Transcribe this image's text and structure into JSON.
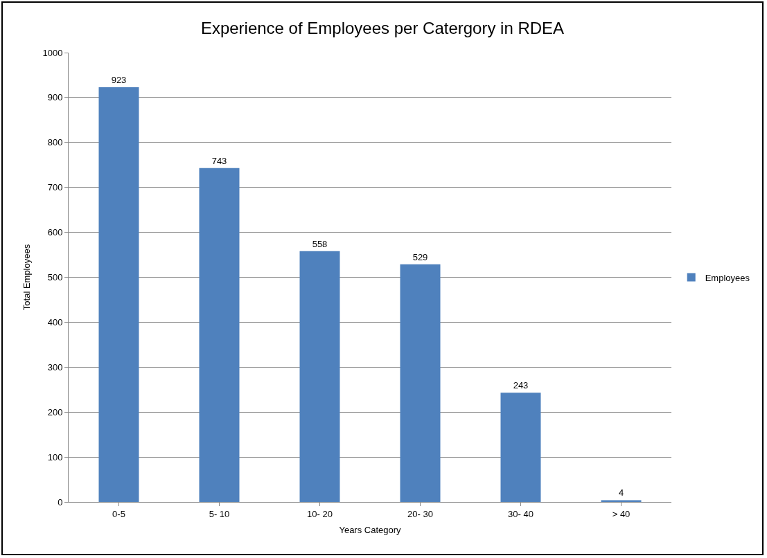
{
  "chart_data": {
    "type": "bar",
    "title": "Experience of Employees per Catergory in RDEA",
    "xlabel": "Years Category",
    "ylabel": "Total Employees",
    "categories": [
      "0-5",
      "5- 10",
      "10- 20",
      "20- 30",
      "30- 40",
      "> 40"
    ],
    "series": [
      {
        "name": "Employees",
        "color": "#4f81bd",
        "values": [
          923,
          743,
          558,
          529,
          243,
          4
        ]
      }
    ],
    "ylim": [
      0,
      1000
    ],
    "yticks": [
      0,
      100,
      200,
      300,
      400,
      500,
      600,
      700,
      800,
      900,
      1000
    ],
    "grid": "y",
    "legend": "right",
    "data_labels": true
  }
}
